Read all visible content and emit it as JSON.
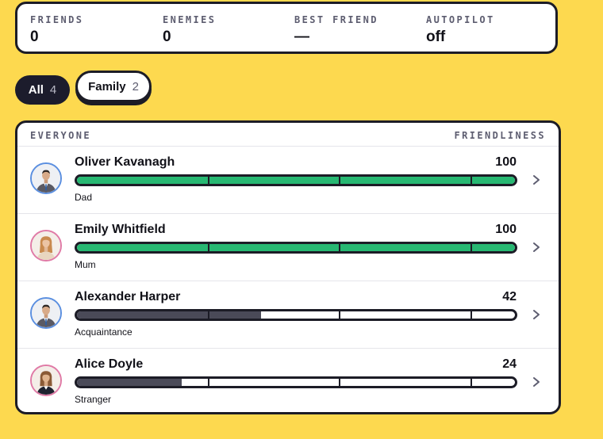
{
  "stats": [
    {
      "label": "FRIENDS",
      "value": "0"
    },
    {
      "label": "ENEMIES",
      "value": "0"
    },
    {
      "label": "BEST FRIEND",
      "value": "—"
    },
    {
      "label": "AUTOPILOT",
      "value": "off"
    }
  ],
  "filters": [
    {
      "label": "All",
      "count": "4",
      "selected": true
    },
    {
      "label": "Family",
      "count": "2",
      "selected": false
    }
  ],
  "panel": {
    "header_left": "EVERYONE",
    "header_right": "FRIENDLINESS"
  },
  "people": [
    {
      "name": "Oliver Kavanagh",
      "score": "100",
      "friendliness": 100,
      "relation": "Dad",
      "avatar": "man-suit-avatar"
    },
    {
      "name": "Emily Whitfield",
      "score": "100",
      "friendliness": 100,
      "relation": "Mum",
      "avatar": "woman-blonde-avatar"
    },
    {
      "name": "Alexander Harper",
      "score": "42",
      "friendliness": 42,
      "relation": "Acquaintance",
      "avatar": "man-suit-avatar"
    },
    {
      "name": "Alice Doyle",
      "score": "24",
      "friendliness": 24,
      "relation": "Stranger",
      "avatar": "woman-dark-avatar"
    }
  ],
  "colors": {
    "background": "#fdd94f",
    "friendly_fill": "#27b872",
    "neutral_fill": "#4a4a58",
    "male_ring": "#5b8fe0",
    "female_ring": "#e07aa6"
  }
}
